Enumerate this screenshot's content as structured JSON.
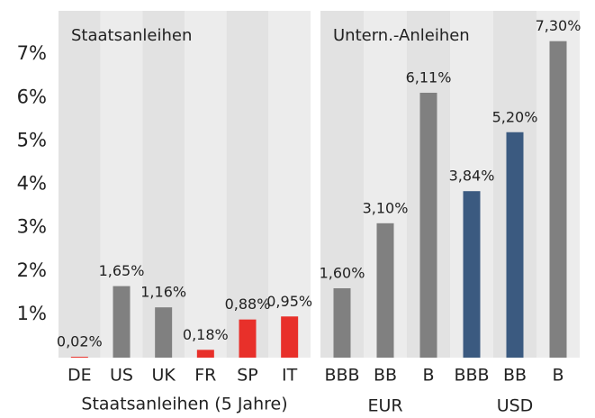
{
  "chart_data": [
    {
      "type": "bar",
      "title": "Staatsanleihen",
      "xlabel": "Staatsanleihen (5 Jahre)",
      "categories": [
        "DE",
        "US",
        "UK",
        "FR",
        "SP",
        "IT"
      ],
      "values": [
        0.02,
        1.65,
        1.16,
        0.18,
        0.88,
        0.95
      ],
      "value_labels": [
        "0,02%",
        "1,65%",
        "1,16%",
        "0,18%",
        "0,88%",
        "0,95%"
      ],
      "colors": [
        "#e8302a",
        "#808080",
        "#808080",
        "#e8302a",
        "#e8302a",
        "#e8302a"
      ],
      "ylim": [
        0,
        8
      ],
      "yticks": [
        {
          "value": 1,
          "label": "1%"
        },
        {
          "value": 2,
          "label": "2%"
        },
        {
          "value": 3,
          "label": "3%"
        },
        {
          "value": 4,
          "label": "4%"
        },
        {
          "value": 5,
          "label": "5%"
        },
        {
          "value": 6,
          "label": "6%"
        },
        {
          "value": 7,
          "label": "7%"
        }
      ]
    },
    {
      "type": "bar",
      "title": "Untern.-Anleihen",
      "categories": [
        "BBB",
        "BB",
        "B",
        "BBB",
        "BB",
        "B"
      ],
      "groups": [
        "EUR",
        "USD"
      ],
      "values": [
        1.6,
        3.1,
        6.11,
        3.84,
        5.2,
        7.3
      ],
      "value_labels": [
        "1,60%",
        "3,10%",
        "6,11%",
        "3,84%",
        "5,20%",
        "7,30%"
      ],
      "colors": [
        "#808080",
        "#808080",
        "#808080",
        "#3b5a80",
        "#3b5a80",
        "#808080"
      ],
      "ylim": [
        0,
        8
      ]
    }
  ]
}
